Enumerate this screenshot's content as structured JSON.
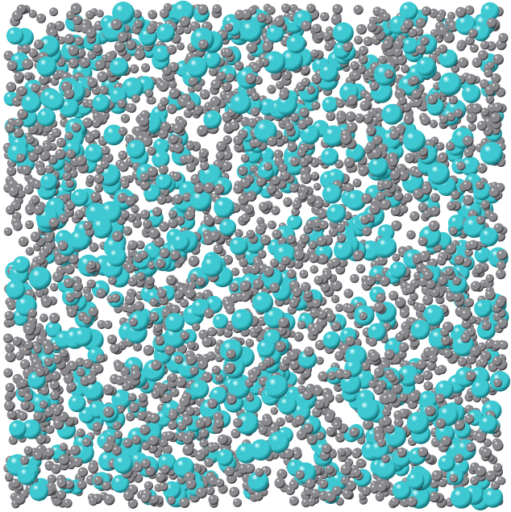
{
  "scene": {
    "kind": "molecular-dynamics-snapshot",
    "background_color": "#ffffff",
    "species": [
      {
        "name": "small-atom",
        "color": "#8a8a8e",
        "highlight": "#ffffff",
        "shadow": "#232326",
        "share": 0.82
      },
      {
        "name": "large-atom",
        "color": "#3ec9d2",
        "highlight": "#e8ffff",
        "shadow": "#0b5f66",
        "share": 0.18
      }
    ],
    "shading": "specular-sphere",
    "projection": "orthographic-top-view",
    "box_shape": "square-periodic-cell"
  }
}
